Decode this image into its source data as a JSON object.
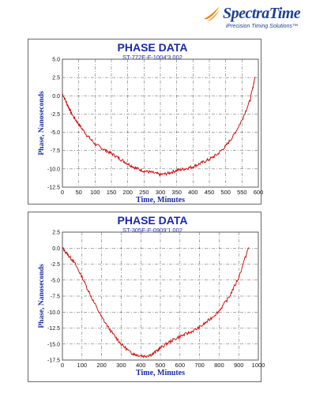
{
  "brand": {
    "name": "SpectraTime",
    "tagline": "iPrecision Timing Solutions™",
    "color": "#1f3f8f",
    "accent": "#e8881a"
  },
  "chart_data": [
    {
      "type": "line",
      "title": "PHASE DATA",
      "subtitle": "ST-772E-F-1004’3.002",
      "xlabel": "Time, Minutes",
      "ylabel": "Phase, Nanoseconds",
      "xlim": [
        0,
        600
      ],
      "ylim": [
        -12.5,
        5.0
      ],
      "xticks": [
        0,
        50,
        100,
        150,
        200,
        250,
        300,
        350,
        400,
        450,
        500,
        550,
        600
      ],
      "yticks": [
        5.0,
        2.5,
        0.0,
        -2.5,
        -5.0,
        -7.5,
        -10.0,
        -12.5
      ],
      "ytick_labels": [
        "5.0",
        "2.5",
        "0.0",
        "-2.5",
        "-5.0",
        "-7.5",
        "-10.0",
        "-12.5"
      ],
      "grid": true,
      "line_color": "#cc0000",
      "series": [
        {
          "x": [
            0,
            15,
            30,
            50,
            75,
            100,
            125,
            150,
            175,
            200,
            225,
            250,
            275,
            300,
            325,
            350,
            375,
            400,
            425,
            450,
            475,
            500,
            525,
            550,
            575,
            590
          ],
          "values": [
            0.3,
            -1.2,
            -2.6,
            -3.9,
            -5.4,
            -6.6,
            -7.3,
            -7.9,
            -8.6,
            -9.3,
            -9.9,
            -10.3,
            -10.5,
            -10.8,
            -10.6,
            -10.2,
            -10.0,
            -9.7,
            -9.2,
            -8.7,
            -8.0,
            -6.9,
            -5.4,
            -3.3,
            -0.6,
            2.6
          ]
        }
      ]
    },
    {
      "type": "line",
      "title": "PHASE DATA",
      "subtitle": "ST-305E-F-0909’1.002",
      "xlabel": "Time, Minutes",
      "ylabel": "Phase, Nanoseconds",
      "xlim": [
        0,
        1000
      ],
      "ylim": [
        -17.5,
        2.5
      ],
      "xticks": [
        0,
        100,
        200,
        300,
        400,
        500,
        600,
        700,
        800,
        900,
        1000
      ],
      "yticks": [
        2.5,
        0.0,
        -2.5,
        -5.0,
        -7.5,
        -10.0,
        -12.5,
        -15.0,
        -17.5
      ],
      "ytick_labels": [
        "2.5",
        "0.0",
        "-2.5",
        "-5.0",
        "-7.5",
        "-10.0",
        "-12.5",
        "-15.0",
        "-17.5"
      ],
      "grid": true,
      "line_color": "#cc0000",
      "series": [
        {
          "x": [
            0,
            30,
            60,
            100,
            150,
            200,
            250,
            300,
            350,
            380,
            420,
            460,
            500,
            550,
            600,
            650,
            700,
            750,
            800,
            850,
            900,
            950
          ],
          "values": [
            0.0,
            -1.1,
            -2.2,
            -4.5,
            -7.8,
            -10.8,
            -13.1,
            -15.0,
            -16.4,
            -16.7,
            -16.9,
            -16.6,
            -15.6,
            -14.6,
            -13.8,
            -13.2,
            -12.4,
            -11.2,
            -9.8,
            -7.7,
            -4.6,
            0.1
          ]
        }
      ]
    }
  ]
}
